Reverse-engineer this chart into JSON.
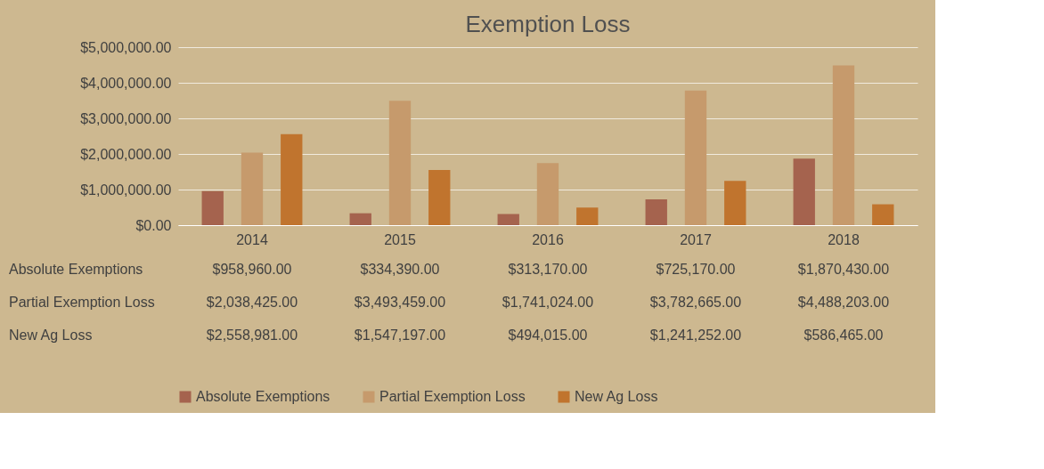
{
  "chart_data": {
    "type": "bar",
    "title": "Exemption Loss",
    "categories": [
      "2014",
      "2015",
      "2016",
      "2017",
      "2018"
    ],
    "series": [
      {
        "name": "Absolute Exemptions",
        "color": "#a5634e",
        "values": [
          958960,
          334390,
          313170,
          725170,
          1870430
        ],
        "value_labels": [
          "$958,960.00",
          "$334,390.00",
          "$313,170.00",
          "$725,170.00",
          "$1,870,430.00"
        ]
      },
      {
        "name": "Partial Exemption Loss",
        "color": "#c69a6c",
        "values": [
          2038425,
          3493459,
          1741024,
          3782665,
          4488203
        ],
        "value_labels": [
          "$2,038,425.00",
          "$3,493,459.00",
          "$1,741,024.00",
          "$3,782,665.00",
          "$4,488,203.00"
        ]
      },
      {
        "name": "New Ag Loss",
        "color": "#c0742e",
        "values": [
          2558981,
          1547197,
          494015,
          1241252,
          586465
        ],
        "value_labels": [
          "$2,558,981.00",
          "$1,547,197.00",
          "$494,015.00",
          "$1,241,252.00",
          "$586,465.00"
        ]
      }
    ],
    "ylim": [
      0,
      5000000
    ],
    "yticks": [
      {
        "value": 0,
        "label": "$0.00"
      },
      {
        "value": 1000000,
        "label": "$1,000,000.00"
      },
      {
        "value": 2000000,
        "label": "$2,000,000.00"
      },
      {
        "value": 3000000,
        "label": "$3,000,000.00"
      },
      {
        "value": 4000000,
        "label": "$4,000,000.00"
      },
      {
        "value": 5000000,
        "label": "$5,000,000.00"
      }
    ],
    "grid": "y",
    "legend": "bottom"
  }
}
